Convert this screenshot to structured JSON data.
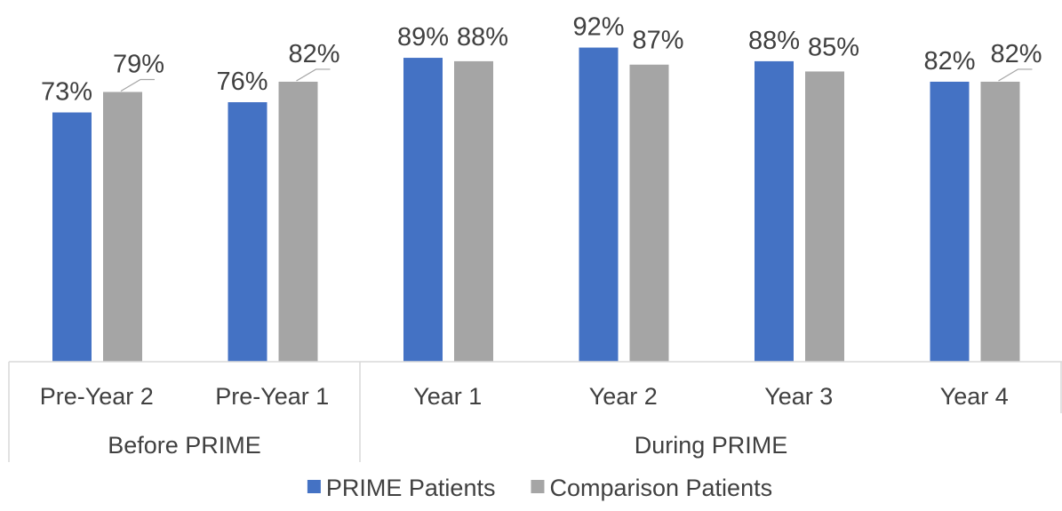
{
  "chart_data": {
    "type": "bar",
    "title": "",
    "xlabel": "",
    "ylabel": "",
    "ylim": [
      0,
      100
    ],
    "grid": false,
    "legend_position": "bottom",
    "categories": [
      "Pre-Year 2",
      "Pre-Year 1",
      "Year 1",
      "Year 2",
      "Year 3",
      "Year 4"
    ],
    "groups": [
      {
        "label": "Before PRIME",
        "categories": [
          "Pre-Year 2",
          "Pre-Year 1"
        ]
      },
      {
        "label": "During PRIME",
        "categories": [
          "Year 1",
          "Year 2",
          "Year 3",
          "Year 4"
        ]
      }
    ],
    "series": [
      {
        "name": "PRIME Patients",
        "color": "#4472C4",
        "values": [
          73,
          76,
          89,
          92,
          88,
          82
        ],
        "labels": [
          "73%",
          "76%",
          "89%",
          "92%",
          "88%",
          "82%"
        ]
      },
      {
        "name": "Comparison Patients",
        "color": "#A5A5A5",
        "values": [
          79,
          82,
          88,
          87,
          85,
          82
        ],
        "labels": [
          "79%",
          "82%",
          "88%",
          "87%",
          "85%",
          "82%"
        ]
      }
    ]
  }
}
